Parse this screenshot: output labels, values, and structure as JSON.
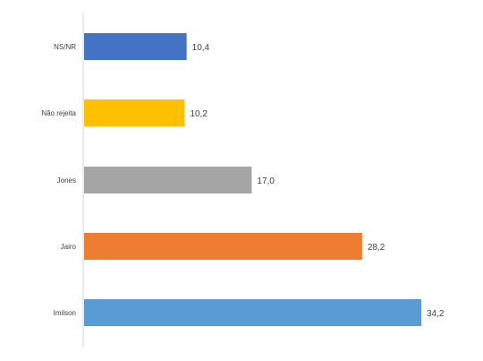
{
  "chart_data": {
    "type": "bar",
    "orientation": "horizontal",
    "categories": [
      "NS/NR",
      "Não rejeita",
      "Jones",
      "Jairo",
      "Imilson"
    ],
    "values": [
      10.4,
      10.2,
      17.0,
      28.2,
      34.2
    ],
    "value_labels": [
      "10,4",
      "10,2",
      "17,0",
      "28,2",
      "34,2"
    ],
    "colors": [
      "#4472C4",
      "#FFC000",
      "#A5A5A5",
      "#ED7D31",
      "#5B9BD5"
    ],
    "xlim": [
      0,
      35
    ],
    "grid": false,
    "legend": "none",
    "title": "",
    "xlabel": "",
    "ylabel": ""
  }
}
